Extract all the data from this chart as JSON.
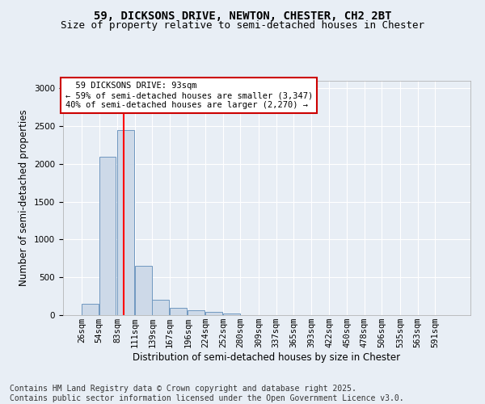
{
  "title_line1": "59, DICKSONS DRIVE, NEWTON, CHESTER, CH2 2BT",
  "title_line2": "Size of property relative to semi-detached houses in Chester",
  "xlabel": "Distribution of semi-detached houses by size in Chester",
  "ylabel": "Number of semi-detached properties",
  "footer_line1": "Contains HM Land Registry data © Crown copyright and database right 2025.",
  "footer_line2": "Contains public sector information licensed under the Open Government Licence v3.0.",
  "annotation_line1": "59 DICKSONS DRIVE: 93sqm",
  "annotation_line2": "← 59% of semi-detached houses are smaller (3,347)",
  "annotation_line3": "40% of semi-detached houses are larger (2,270) →",
  "property_size": 93,
  "categories": [
    "26sqm",
    "54sqm",
    "83sqm",
    "111sqm",
    "139sqm",
    "167sqm",
    "196sqm",
    "224sqm",
    "252sqm",
    "280sqm",
    "309sqm",
    "337sqm",
    "365sqm",
    "393sqm",
    "422sqm",
    "450sqm",
    "478sqm",
    "506sqm",
    "535sqm",
    "563sqm",
    "591sqm"
  ],
  "bin_starts": [
    26,
    54,
    83,
    111,
    139,
    167,
    196,
    224,
    252,
    280,
    309,
    337,
    365,
    393,
    422,
    450,
    478,
    506,
    535,
    563,
    591
  ],
  "values": [
    150,
    2100,
    2450,
    650,
    200,
    100,
    60,
    40,
    25,
    5,
    0,
    0,
    0,
    0,
    0,
    0,
    0,
    0,
    0,
    0,
    0
  ],
  "bar_color": "#cdd9e8",
  "bar_edge_color": "#7098c0",
  "red_line_x": 93,
  "ylim": [
    0,
    3100
  ],
  "yticks": [
    0,
    500,
    1000,
    1500,
    2000,
    2500,
    3000
  ],
  "background_color": "#e8eef5",
  "plot_bg_color": "#e8eef5",
  "annotation_box_facecolor": "#ffffff",
  "annotation_box_edge": "#cc0000",
  "title_fontsize": 10,
  "subtitle_fontsize": 9,
  "axis_label_fontsize": 8.5,
  "tick_fontsize": 7.5,
  "footer_fontsize": 7
}
